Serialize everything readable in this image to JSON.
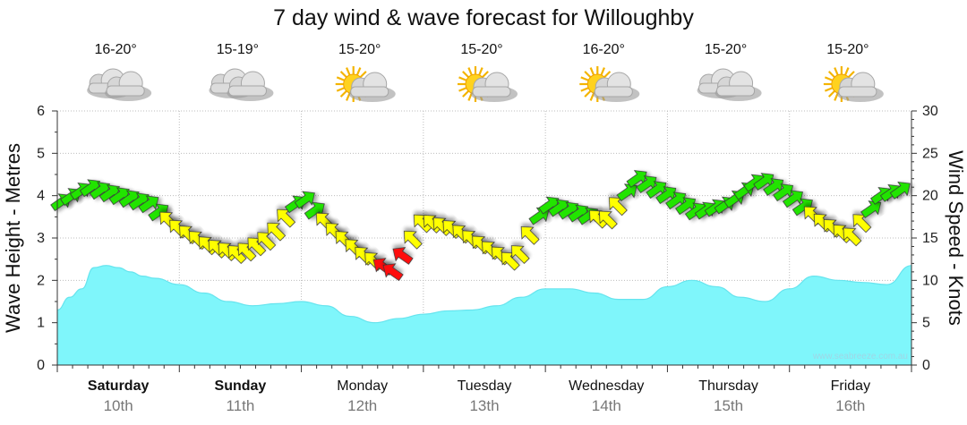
{
  "chart_data": {
    "type": "area",
    "title": "7 day wind & wave forecast for Willoughby",
    "left_axis": {
      "label": "Wave Height - Metres",
      "ticks": [
        "0",
        "1",
        "2",
        "3",
        "4",
        "5",
        "6"
      ],
      "range": [
        0,
        6
      ]
    },
    "right_axis": {
      "label": "Wind Speed - Knots",
      "ticks": [
        "0",
        "5",
        "10",
        "15",
        "20",
        "25",
        "30"
      ],
      "range": [
        0,
        30
      ]
    },
    "days": [
      {
        "name": "Saturday",
        "date": "10th",
        "temp": "16-20°",
        "weather": "cloudy",
        "bold": true
      },
      {
        "name": "Sunday",
        "date": "11th",
        "temp": "15-19°",
        "weather": "cloudy",
        "bold": true
      },
      {
        "name": "Monday",
        "date": "12th",
        "temp": "15-20°",
        "weather": "partly-sunny",
        "bold": false
      },
      {
        "name": "Tuesday",
        "date": "13th",
        "temp": "15-20°",
        "weather": "partly-sunny",
        "bold": false
      },
      {
        "name": "Wednesday",
        "date": "14th",
        "temp": "16-20°",
        "weather": "partly-sunny",
        "bold": false
      },
      {
        "name": "Thursday",
        "date": "15th",
        "temp": "15-20°",
        "weather": "cloudy",
        "bold": false
      },
      {
        "name": "Friday",
        "date": "16th",
        "temp": "15-20°",
        "weather": "partly-sunny",
        "bold": false
      }
    ],
    "wave_series": {
      "name": "Wave Height",
      "unit": "m",
      "x_days": [
        0,
        0.1,
        0.2,
        0.3,
        0.4,
        0.5,
        0.6,
        0.7,
        0.8,
        1.0,
        1.2,
        1.4,
        1.6,
        1.8,
        2.0,
        2.2,
        2.4,
        2.6,
        2.8,
        3.0,
        3.2,
        3.4,
        3.6,
        3.8,
        4.0,
        4.2,
        4.4,
        4.6,
        4.8,
        5.0,
        5.2,
        5.4,
        5.6,
        5.8,
        6.0,
        6.2,
        6.4,
        6.6,
        6.8,
        7.0
      ],
      "values": [
        1.3,
        1.6,
        1.8,
        2.3,
        2.35,
        2.3,
        2.2,
        2.1,
        2.05,
        1.9,
        1.7,
        1.5,
        1.4,
        1.45,
        1.5,
        1.4,
        1.15,
        1.0,
        1.1,
        1.2,
        1.28,
        1.3,
        1.4,
        1.6,
        1.8,
        1.8,
        1.7,
        1.55,
        1.55,
        1.85,
        2.0,
        1.85,
        1.6,
        1.5,
        1.8,
        2.1,
        2.0,
        1.95,
        1.9,
        2.35
      ]
    },
    "wind_series": {
      "name": "Wind Speed",
      "unit": "knots",
      "x_days": [
        0,
        0.25,
        0.5,
        0.75,
        1.0,
        1.25,
        1.5,
        1.75,
        2.0,
        2.25,
        2.5,
        2.75,
        3.0,
        3.25,
        3.5,
        3.75,
        4.0,
        4.25,
        4.5,
        4.75,
        5.0,
        5.25,
        5.5,
        5.75,
        6.0,
        6.25,
        6.5,
        6.75,
        7.0
      ],
      "values": [
        19,
        21,
        20,
        19,
        16,
        14,
        13,
        15,
        20,
        16,
        13,
        11,
        17,
        16,
        14,
        12,
        19,
        18,
        17,
        22,
        20,
        18,
        19,
        22,
        20,
        17,
        15,
        20,
        21
      ],
      "colors": [
        "green",
        "green",
        "green",
        "green",
        "yellow",
        "yellow",
        "yellow",
        "yellow",
        "green",
        "yellow",
        "yellow",
        "red",
        "yellow",
        "yellow",
        "yellow",
        "yellow",
        "green",
        "green",
        "yellow",
        "green",
        "green",
        "green",
        "green",
        "green",
        "green",
        "yellow",
        "yellow",
        "green",
        "green"
      ]
    },
    "grid": true,
    "legend": "none",
    "watermark": "www.seabreeze.com.au"
  }
}
